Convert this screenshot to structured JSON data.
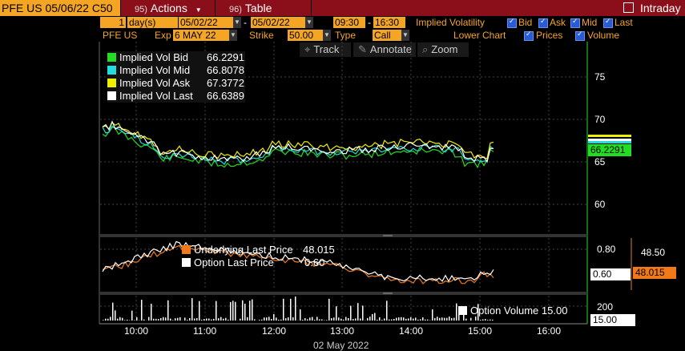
{
  "header": {
    "security": "PFE US 05/06/22 C50",
    "actions_num": "95)",
    "actions_label": "Actions",
    "table_num": "96)",
    "table_label": "Table",
    "intraday_label": "Intraday"
  },
  "controls": {
    "period_value": "1",
    "period_unit": "day(s)",
    "start_date": "05/02/22",
    "date_sep": "-",
    "end_date": "05/02/22",
    "start_time": "09:30",
    "time_sep": "-",
    "end_time": "16:30",
    "upper_chart_label": "Implied Volatility",
    "bid_label": "Bid",
    "ask_label": "Ask",
    "mid_label": "Mid",
    "last_label": "Last",
    "ticker": "PFE US",
    "exp_label": "Exp",
    "exp_value": "6 MAY 22",
    "strike_label": "Strike",
    "strike_value": "50.00",
    "type_label": "Type",
    "type_value": "Call",
    "lower_chart_label": "Lower Chart",
    "prices_label": "Prices",
    "volume_label": "Volume"
  },
  "tools": {
    "track": "Track",
    "annotate": "Annotate",
    "zoom": "Zoom"
  },
  "legend_iv": [
    {
      "label": "Implied Vol Bid",
      "value": "66.2291",
      "color": "#22dd22"
    },
    {
      "label": "Implied Vol Mid",
      "value": "66.8078",
      "color": "#22dddd"
    },
    {
      "label": "Implied Vol Ask",
      "value": "67.3772",
      "color": "#eeee00"
    },
    {
      "label": "Implied Vol Last",
      "value": "66.6389",
      "color": "#ffffff"
    }
  ],
  "legend_price": [
    {
      "label": "Underlying Last Price",
      "value": "48.015",
      "color": "#f07a1a"
    },
    {
      "label": "Option Last Price",
      "value": "0.60",
      "color": "#ffffff"
    }
  ],
  "legend_volume": {
    "label": "Option Volume",
    "value": "15.00",
    "color": "#ffffff"
  },
  "axes": {
    "iv_ticks": [
      "75",
      "70",
      "65",
      "60"
    ],
    "iv_tag": "66.2291",
    "price_tick_left": "0.80",
    "price_tick_right": "48.50",
    "option_tag": "0.60",
    "underlying_tag": "48.015",
    "volume_tick": "200",
    "volume_tag": "15.00",
    "time_ticks": [
      "10:00",
      "11:00",
      "12:00",
      "13:00",
      "14:00",
      "15:00",
      "16:00"
    ],
    "date_label": "02 May 2022"
  },
  "colors": {
    "header_bg": "#8b0f1a",
    "field_bg": "#f5a524",
    "bid": "#22dd22",
    "mid": "#22dddd",
    "ask": "#eeee00",
    "last": "#ffffff",
    "underlying": "#f07a1a"
  }
}
